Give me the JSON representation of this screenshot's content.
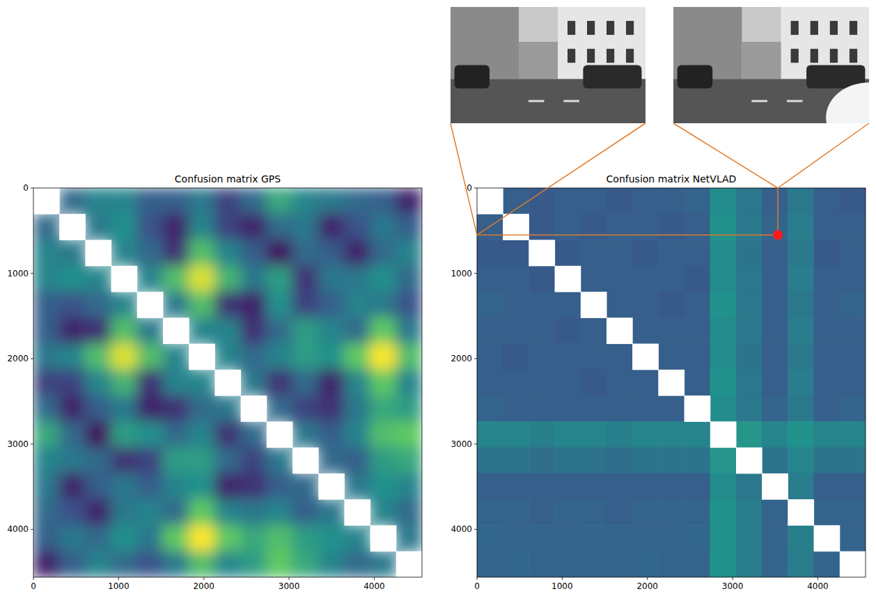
{
  "chart_data": [
    {
      "type": "heatmap",
      "title": "Confusion matrix GPS",
      "color": "viridis",
      "xlim": [
        0,
        4560
      ],
      "ylim": [
        4560,
        0
      ],
      "xticks": [
        0,
        1000,
        2000,
        3000,
        4000
      ],
      "yticks": [
        0,
        1000,
        2000,
        3000,
        4000
      ],
      "x_edges": [
        0,
        304,
        608,
        912,
        1216,
        1520,
        1824,
        2128,
        2432,
        2736,
        3040,
        3344,
        3648,
        3952,
        4256,
        4560
      ],
      "y_edges": [
        0,
        304,
        608,
        912,
        1216,
        1520,
        1824,
        2128,
        2432,
        2736,
        3040,
        3344,
        3648,
        3952,
        4256,
        4560
      ],
      "zlim": [
        0,
        1
      ],
      "cells": [
        [
          null,
          0.35,
          0.45,
          0.45,
          0.3,
          0.3,
          0.4,
          0.2,
          0.35,
          0.6,
          0.45,
          0.4,
          0.35,
          0.3,
          0.1
        ],
        [
          0.35,
          null,
          0.4,
          0.5,
          0.25,
          0.1,
          0.45,
          0.2,
          0.1,
          0.35,
          0.4,
          0.1,
          0.25,
          0.4,
          0.3
        ],
        [
          0.45,
          0.4,
          null,
          0.45,
          0.35,
          0.15,
          0.7,
          0.45,
          0.3,
          0.05,
          0.35,
          0.3,
          0.1,
          0.35,
          0.45
        ],
        [
          0.45,
          0.5,
          0.45,
          null,
          0.45,
          0.7,
          0.95,
          0.65,
          0.4,
          0.55,
          0.15,
          0.4,
          0.4,
          0.5,
          0.35
        ],
        [
          0.3,
          0.25,
          0.35,
          0.45,
          null,
          0.4,
          0.7,
          0.15,
          0.1,
          0.5,
          0.2,
          0.3,
          0.45,
          0.4,
          0.25
        ],
        [
          0.3,
          0.1,
          0.15,
          0.7,
          0.4,
          null,
          0.45,
          0.45,
          0.15,
          0.35,
          0.55,
          0.45,
          0.35,
          0.75,
          0.4
        ],
        [
          0.4,
          0.45,
          0.7,
          0.95,
          0.7,
          0.45,
          null,
          0.45,
          0.35,
          0.45,
          0.55,
          0.5,
          0.75,
          1.0,
          0.7
        ],
        [
          0.2,
          0.2,
          0.45,
          0.65,
          0.15,
          0.45,
          0.45,
          null,
          0.4,
          0.15,
          0.35,
          0.1,
          0.45,
          0.75,
          0.45
        ],
        [
          0.35,
          0.1,
          0.3,
          0.4,
          0.1,
          0.15,
          0.35,
          0.4,
          null,
          0.35,
          0.2,
          0.15,
          0.4,
          0.6,
          0.55
        ],
        [
          0.6,
          0.35,
          0.05,
          0.55,
          0.5,
          0.35,
          0.45,
          0.15,
          0.35,
          null,
          0.4,
          0.3,
          0.45,
          0.7,
          0.75
        ],
        [
          0.45,
          0.4,
          0.35,
          0.15,
          0.2,
          0.55,
          0.55,
          0.35,
          0.2,
          0.4,
          null,
          0.35,
          0.3,
          0.55,
          0.6
        ],
        [
          0.4,
          0.1,
          0.3,
          0.4,
          0.3,
          0.45,
          0.5,
          0.1,
          0.15,
          0.3,
          0.35,
          null,
          0.4,
          0.5,
          0.45
        ],
        [
          0.35,
          0.25,
          0.1,
          0.4,
          0.45,
          0.35,
          0.75,
          0.45,
          0.4,
          0.45,
          0.3,
          0.4,
          null,
          0.45,
          0.35
        ],
        [
          0.3,
          0.4,
          0.35,
          0.5,
          0.4,
          0.75,
          1.0,
          0.75,
          0.6,
          0.7,
          0.55,
          0.5,
          0.45,
          null,
          0.4
        ],
        [
          0.1,
          0.3,
          0.45,
          0.35,
          0.25,
          0.4,
          0.7,
          0.45,
          0.55,
          0.75,
          0.6,
          0.45,
          0.35,
          0.4,
          null
        ]
      ]
    },
    {
      "type": "heatmap",
      "title": "Confusion matrix NetVLAD",
      "color": "viridis",
      "xlim": [
        0,
        4560
      ],
      "ylim": [
        4560,
        0
      ],
      "xticks": [
        0,
        1000,
        2000,
        3000,
        4000
      ],
      "yticks": [
        0,
        1000,
        2000,
        3000,
        4000
      ],
      "x_edges": [
        0,
        304,
        608,
        912,
        1216,
        1520,
        1824,
        2128,
        2432,
        2736,
        3040,
        3344,
        3648,
        3952,
        4256,
        4560
      ],
      "y_edges": [
        0,
        304,
        608,
        912,
        1216,
        1520,
        1824,
        2128,
        2432,
        2736,
        3040,
        3344,
        3648,
        3952,
        4256,
        4560
      ],
      "zlim": [
        0,
        1
      ],
      "cells": [
        [
          null,
          0.3,
          0.28,
          0.3,
          0.3,
          0.28,
          0.3,
          0.3,
          0.32,
          0.48,
          0.4,
          0.3,
          0.4,
          0.3,
          0.28
        ],
        [
          0.3,
          null,
          0.28,
          0.3,
          0.28,
          0.3,
          0.3,
          0.28,
          0.3,
          0.5,
          0.4,
          0.32,
          0.42,
          0.3,
          0.3
        ],
        [
          0.28,
          0.28,
          null,
          0.28,
          0.3,
          0.3,
          0.28,
          0.3,
          0.3,
          0.48,
          0.38,
          0.3,
          0.4,
          0.28,
          0.3
        ],
        [
          0.3,
          0.3,
          0.28,
          null,
          0.3,
          0.3,
          0.3,
          0.3,
          0.28,
          0.48,
          0.4,
          0.3,
          0.42,
          0.3,
          0.3
        ],
        [
          0.32,
          0.3,
          0.3,
          0.3,
          null,
          0.3,
          0.3,
          0.28,
          0.3,
          0.5,
          0.4,
          0.3,
          0.4,
          0.3,
          0.32
        ],
        [
          0.3,
          0.3,
          0.3,
          0.28,
          0.3,
          null,
          0.3,
          0.3,
          0.3,
          0.48,
          0.4,
          0.3,
          0.42,
          0.3,
          0.3
        ],
        [
          0.3,
          0.28,
          0.3,
          0.3,
          0.3,
          0.3,
          null,
          0.3,
          0.3,
          0.48,
          0.38,
          0.3,
          0.4,
          0.3,
          0.3
        ],
        [
          0.3,
          0.3,
          0.3,
          0.3,
          0.28,
          0.3,
          0.3,
          null,
          0.3,
          0.5,
          0.4,
          0.3,
          0.42,
          0.3,
          0.3
        ],
        [
          0.32,
          0.3,
          0.3,
          0.3,
          0.3,
          0.3,
          0.3,
          0.3,
          null,
          0.48,
          0.4,
          0.32,
          0.4,
          0.3,
          0.32
        ],
        [
          0.45,
          0.45,
          0.43,
          0.45,
          0.45,
          0.43,
          0.45,
          0.45,
          0.45,
          null,
          0.52,
          0.45,
          0.5,
          0.45,
          0.45
        ],
        [
          0.38,
          0.38,
          0.36,
          0.38,
          0.38,
          0.36,
          0.38,
          0.38,
          0.38,
          0.52,
          null,
          0.38,
          0.45,
          0.38,
          0.38
        ],
        [
          0.3,
          0.3,
          0.3,
          0.3,
          0.3,
          0.3,
          0.3,
          0.3,
          0.3,
          0.48,
          0.4,
          null,
          0.42,
          0.3,
          0.3
        ],
        [
          0.32,
          0.32,
          0.3,
          0.32,
          0.32,
          0.3,
          0.32,
          0.32,
          0.32,
          0.5,
          0.42,
          0.32,
          null,
          0.32,
          0.32
        ],
        [
          0.33,
          0.32,
          0.32,
          0.32,
          0.33,
          0.32,
          0.32,
          0.32,
          0.33,
          0.5,
          0.42,
          0.32,
          0.43,
          null,
          0.32
        ],
        [
          0.32,
          0.33,
          0.32,
          0.32,
          0.32,
          0.32,
          0.33,
          0.32,
          0.32,
          0.5,
          0.42,
          0.32,
          0.42,
          0.32,
          null
        ]
      ],
      "marked_point": {
        "x": 3530,
        "y": 550
      }
    }
  ]
}
